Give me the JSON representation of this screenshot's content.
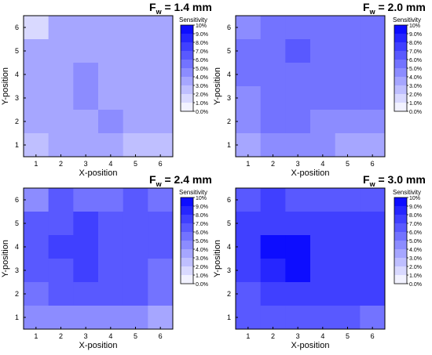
{
  "chart_data": [
    {
      "type": "heatmap",
      "title_main": "F",
      "title_sub": "w",
      "title_value": " = 1.4 mm",
      "xlabel": "X-position",
      "ylabel": "Y-position",
      "x_ticks": [
        "1",
        "2",
        "3",
        "4",
        "5",
        "6"
      ],
      "y_ticks": [
        "1",
        "2",
        "3",
        "4",
        "5",
        "6"
      ],
      "legend_title": "Sensitivity",
      "legend_ticks": [
        "10%",
        "9.0%",
        "8.0%",
        "7.0%",
        "6.0%",
        "5.0%",
        "4.0%",
        "3.0%",
        "2.0%",
        "1.0%",
        "0.0%"
      ],
      "value_range": [
        0,
        10
      ],
      "rows_top_to_bottom": [
        [
          1.5,
          3.5,
          3.5,
          3.5,
          3.5,
          3.5
        ],
        [
          3.5,
          3.5,
          3.5,
          3.5,
          3.5,
          3.5
        ],
        [
          3.5,
          3.5,
          4.5,
          3.5,
          3.5,
          3.5
        ],
        [
          3.5,
          3.5,
          4.5,
          3.5,
          3.5,
          3.5
        ],
        [
          3.5,
          3.5,
          3.5,
          4.5,
          3.5,
          3.5
        ],
        [
          2.5,
          3.5,
          3.5,
          3.5,
          2.5,
          2.5
        ]
      ]
    },
    {
      "type": "heatmap",
      "title_main": "F",
      "title_sub": "w",
      "title_value": " = 2.0 mm",
      "xlabel": "X-position",
      "ylabel": "Y-position",
      "x_ticks": [
        "1",
        "2",
        "3",
        "4",
        "5",
        "6"
      ],
      "y_ticks": [
        "1",
        "2",
        "3",
        "4",
        "5",
        "6"
      ],
      "legend_title": "Sensitivity",
      "legend_ticks": [
        "10%",
        "9.0%",
        "8.0%",
        "7.0%",
        "6.0%",
        "5.0%",
        "4.0%",
        "3.0%",
        "2.0%",
        "1.0%",
        "0.0%"
      ],
      "value_range": [
        0,
        10
      ],
      "rows_top_to_bottom": [
        [
          4.5,
          5.5,
          5.5,
          5.5,
          5.5,
          5.5
        ],
        [
          5.5,
          5.5,
          6.5,
          5.5,
          5.5,
          5.5
        ],
        [
          5.5,
          5.5,
          5.5,
          5.5,
          5.5,
          5.5
        ],
        [
          4.5,
          5.5,
          5.5,
          5.5,
          5.5,
          5.5
        ],
        [
          4.5,
          5.5,
          5.5,
          4.5,
          4.5,
          4.5
        ],
        [
          3.5,
          4.5,
          4.5,
          4.5,
          3.5,
          3.5
        ]
      ]
    },
    {
      "type": "heatmap",
      "title_main": "F",
      "title_sub": "w",
      "title_value": " = 2.4 mm",
      "xlabel": "X-position",
      "ylabel": "Y-position",
      "x_ticks": [
        "1",
        "2",
        "3",
        "4",
        "5",
        "6"
      ],
      "y_ticks": [
        "1",
        "2",
        "3",
        "4",
        "5",
        "6"
      ],
      "legend_title": "Sensitivity",
      "legend_ticks": [
        "10%",
        "9.0%",
        "8.0%",
        "7.0%",
        "6.0%",
        "5.0%",
        "4.0%",
        "3.0%",
        "2.0%",
        "1.0%",
        "0.0%"
      ],
      "value_range": [
        0,
        10
      ],
      "rows_top_to_bottom": [
        [
          4.5,
          6.5,
          5.5,
          5.5,
          6.5,
          5.5
        ],
        [
          6.5,
          6.5,
          7.5,
          6.5,
          6.5,
          6.5
        ],
        [
          6.5,
          7.5,
          7.5,
          6.5,
          6.5,
          6.5
        ],
        [
          6.5,
          6.5,
          7.5,
          6.5,
          6.5,
          5.5
        ],
        [
          5.5,
          6.5,
          6.5,
          6.5,
          6.5,
          5.5
        ],
        [
          4.5,
          4.5,
          4.5,
          4.5,
          4.5,
          3.5
        ]
      ]
    },
    {
      "type": "heatmap",
      "title_main": "F",
      "title_sub": "w",
      "title_value": " = 3.0 mm",
      "xlabel": "X-position",
      "ylabel": "Y-position",
      "x_ticks": [
        "1",
        "2",
        "3",
        "4",
        "5",
        "6"
      ],
      "y_ticks": [
        "1",
        "2",
        "3",
        "4",
        "5",
        "6"
      ],
      "legend_title": "Sensitivity",
      "legend_ticks": [
        "10%",
        "9.0%",
        "8.0%",
        "7.0%",
        "6.0%",
        "5.0%",
        "4.0%",
        "3.0%",
        "2.0%",
        "1.0%",
        "0.0%"
      ],
      "value_range": [
        0,
        10
      ],
      "rows_top_to_bottom": [
        [
          6.5,
          7.5,
          6.5,
          6.5,
          6.5,
          6.5
        ],
        [
          7.5,
          7.5,
          7.5,
          7.5,
          7.5,
          7.5
        ],
        [
          7.5,
          9.5,
          9.5,
          7.5,
          7.5,
          7.5
        ],
        [
          7.5,
          8.5,
          9.5,
          7.5,
          7.5,
          7.5
        ],
        [
          6.5,
          7.5,
          7.5,
          7.5,
          7.5,
          7.5
        ],
        [
          6.5,
          6.5,
          6.5,
          6.5,
          6.5,
          5.5
        ]
      ]
    }
  ]
}
